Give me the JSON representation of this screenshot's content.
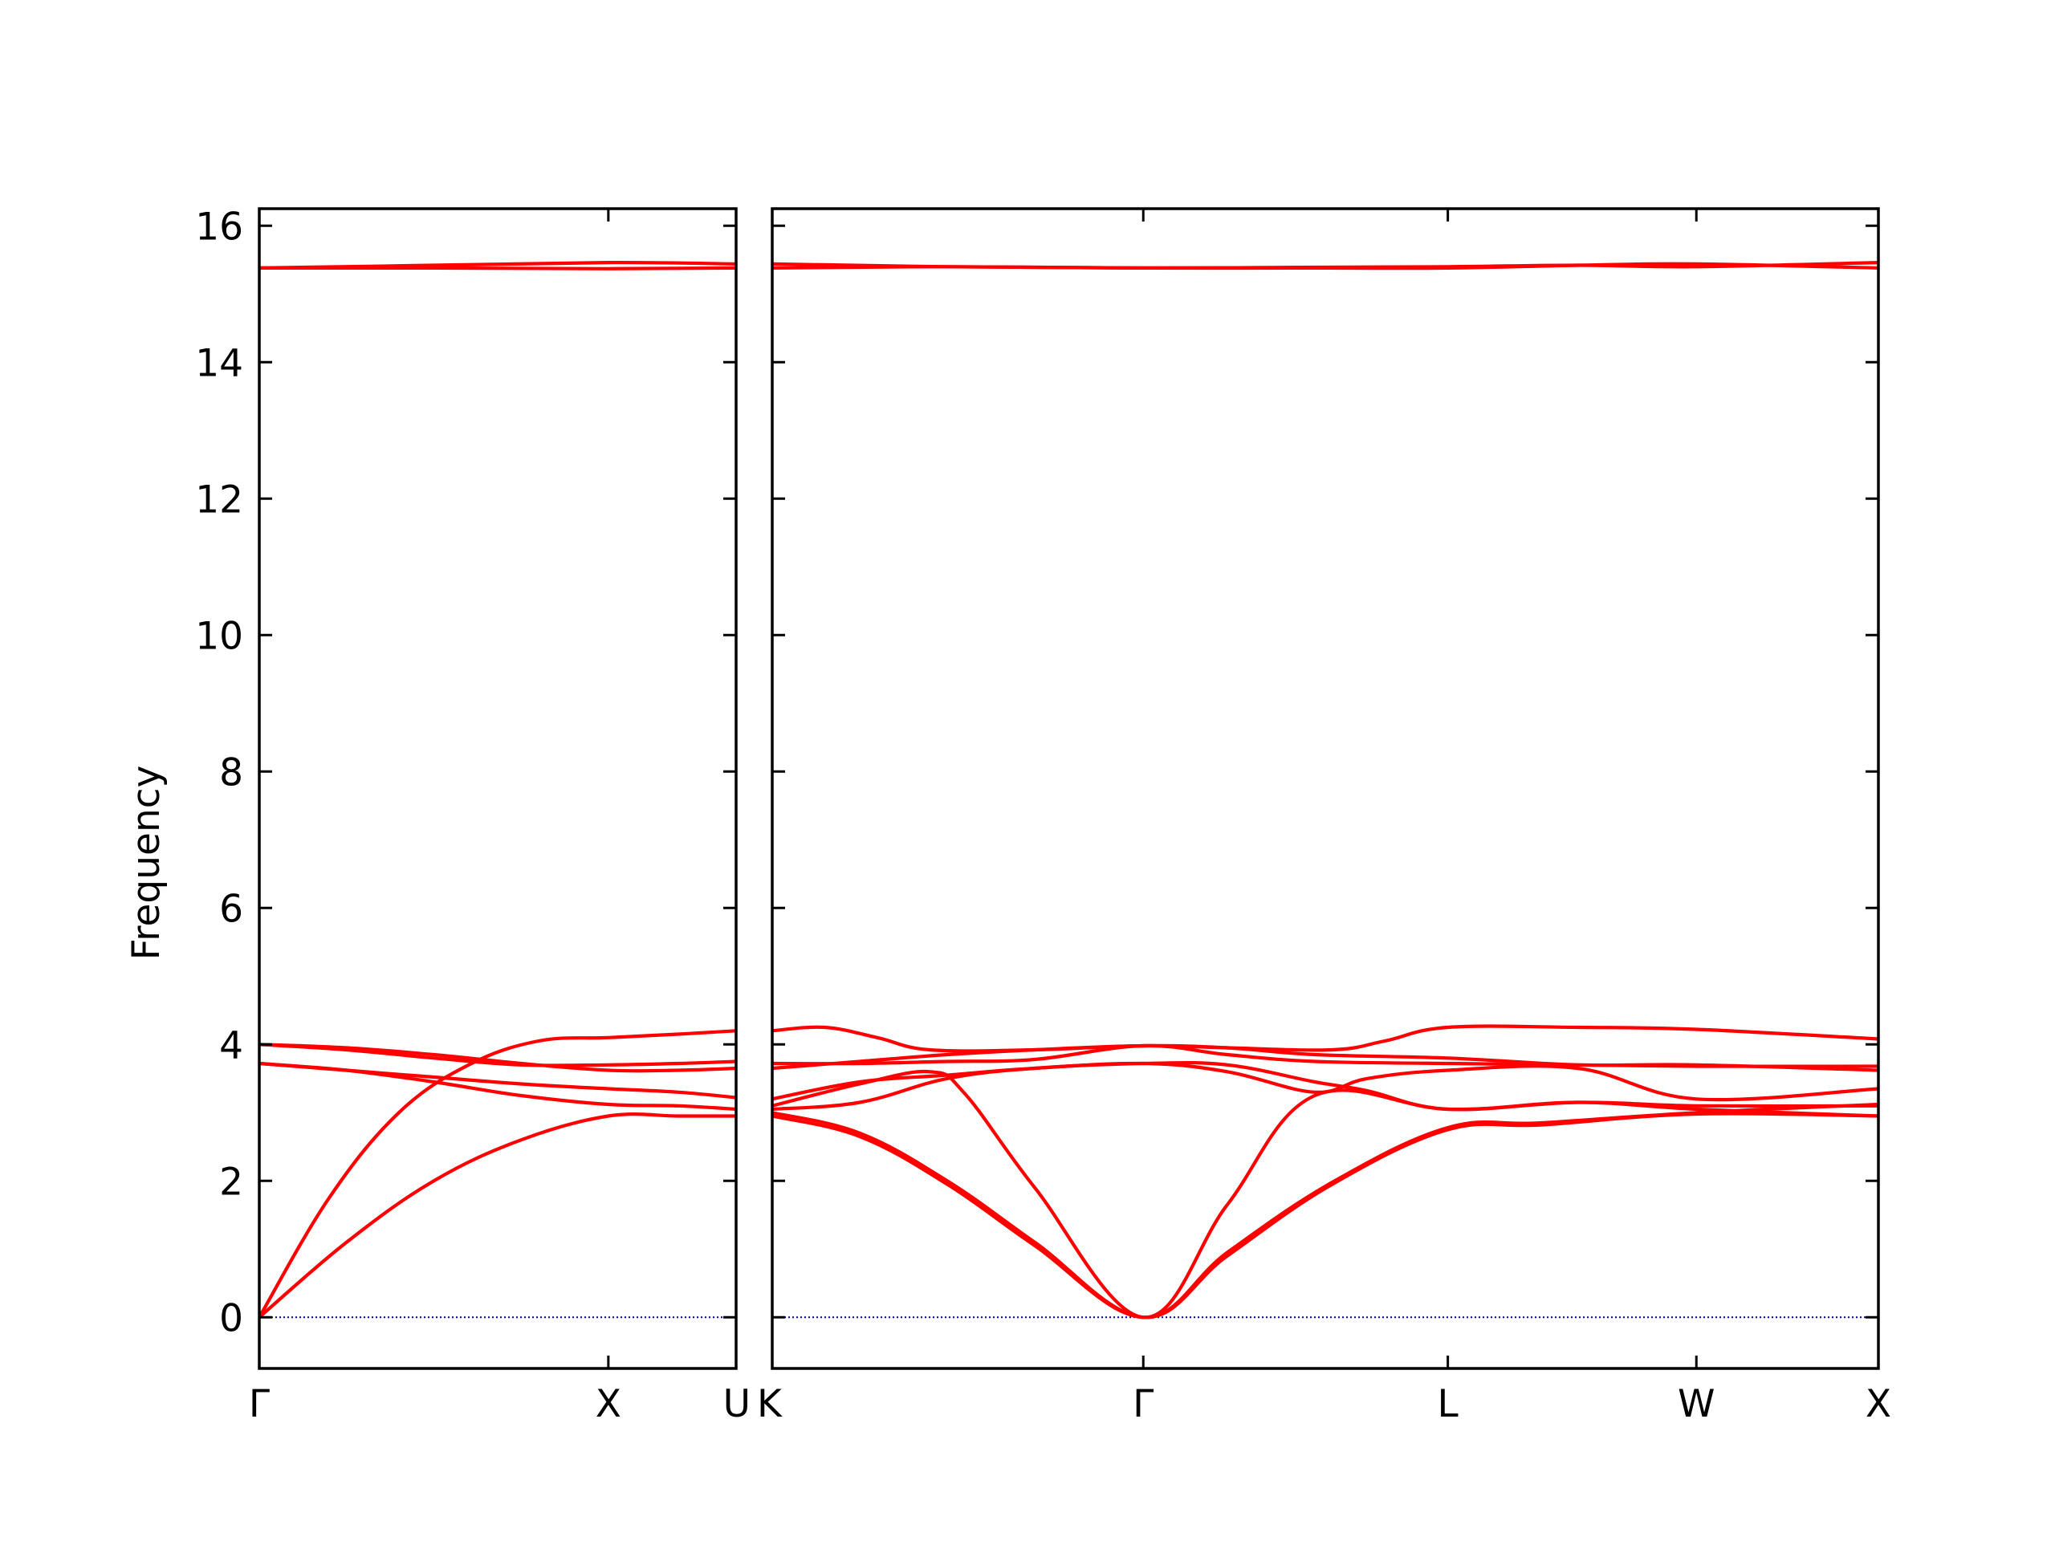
{
  "chart_data": {
    "type": "line",
    "ylabel": "Frequency",
    "ylim": [
      -0.75,
      16.25
    ],
    "yticks": [
      0,
      2,
      4,
      6,
      8,
      10,
      12,
      14,
      16
    ],
    "yticks_text": [
      "0",
      "2",
      "4",
      "6",
      "8",
      "10",
      "12",
      "14",
      "16"
    ],
    "grid": false,
    "colors": {
      "band": "#ff0000",
      "zero_line": "#00008b",
      "axes": "#000000"
    },
    "panels": [
      {
        "x_range": [
          0,
          1.366
        ],
        "ticks": [
          {
            "x": 0,
            "label": "Γ"
          },
          {
            "x": 1.0,
            "label": "X"
          },
          {
            "x": 1.366,
            "label": "U"
          }
        ],
        "bands": [
          [
            [
              0,
              0
            ],
            [
              0.25,
              1.1
            ],
            [
              0.5,
              2.0
            ],
            [
              0.75,
              2.6
            ],
            [
              1.0,
              2.95
            ],
            [
              1.2,
              2.95
            ],
            [
              1.366,
              2.95
            ]
          ],
          [
            [
              0,
              0
            ],
            [
              0.2,
              1.75
            ],
            [
              0.4,
              3.0
            ],
            [
              0.6,
              3.7
            ],
            [
              0.8,
              4.05
            ],
            [
              1.0,
              4.1
            ],
            [
              1.2,
              4.15
            ],
            [
              1.366,
              4.2
            ]
          ],
          [
            [
              0,
              3.72
            ],
            [
              0.25,
              3.62
            ],
            [
              0.5,
              3.45
            ],
            [
              0.75,
              3.25
            ],
            [
              1.0,
              3.12
            ],
            [
              1.2,
              3.1
            ],
            [
              1.366,
              3.05
            ]
          ],
          [
            [
              0,
              3.72
            ],
            [
              0.25,
              3.62
            ],
            [
              0.5,
              3.52
            ],
            [
              0.75,
              3.42
            ],
            [
              1.0,
              3.35
            ],
            [
              1.2,
              3.3
            ],
            [
              1.366,
              3.22
            ]
          ],
          [
            [
              0,
              4.0
            ],
            [
              0.25,
              3.95
            ],
            [
              0.5,
              3.85
            ],
            [
              0.75,
              3.72
            ],
            [
              1.0,
              3.62
            ],
            [
              1.2,
              3.62
            ],
            [
              1.366,
              3.65
            ]
          ],
          [
            [
              0,
              4.0
            ],
            [
              0.25,
              3.92
            ],
            [
              0.5,
              3.8
            ],
            [
              0.75,
              3.7
            ],
            [
              1.0,
              3.7
            ],
            [
              1.2,
              3.72
            ],
            [
              1.366,
              3.75
            ]
          ],
          [
            [
              0,
              15.38
            ],
            [
              0.5,
              15.38
            ],
            [
              1.0,
              15.37
            ],
            [
              1.366,
              15.38
            ]
          ],
          [
            [
              0,
              15.38
            ],
            [
              0.5,
              15.42
            ],
            [
              1.0,
              15.46
            ],
            [
              1.366,
              15.44
            ]
          ]
        ]
      },
      {
        "x_range": [
          0,
          3.16
        ],
        "ticks": [
          {
            "x": 0,
            "label": "K"
          },
          {
            "x": 1.06,
            "label": "Γ"
          },
          {
            "x": 1.93,
            "label": "L"
          },
          {
            "x": 2.64,
            "label": "W"
          },
          {
            "x": 3.16,
            "label": "X"
          }
        ],
        "bands": [
          [
            [
              0,
              3.0
            ],
            [
              0.25,
              2.7
            ],
            [
              0.5,
              2.0
            ],
            [
              0.75,
              1.1
            ],
            [
              1.06,
              0
            ],
            [
              1.3,
              0.9
            ],
            [
              1.6,
              1.95
            ],
            [
              1.93,
              2.75
            ],
            [
              2.2,
              2.82
            ],
            [
              2.64,
              2.98
            ],
            [
              3.16,
              2.95
            ]
          ],
          [
            [
              0,
              2.95
            ],
            [
              0.25,
              2.65
            ],
            [
              0.5,
              1.95
            ],
            [
              0.75,
              1.05
            ],
            [
              1.06,
              0
            ],
            [
              1.3,
              0.95
            ],
            [
              1.6,
              1.98
            ],
            [
              1.93,
              2.78
            ],
            [
              2.2,
              2.85
            ],
            [
              2.64,
              3.0
            ],
            [
              3.16,
              3.12
            ]
          ],
          [
            [
              0,
              3.1
            ],
            [
              0.25,
              3.42
            ],
            [
              0.45,
              3.6
            ],
            [
              0.55,
              3.28
            ],
            [
              0.75,
              1.9
            ],
            [
              1.06,
              0
            ],
            [
              1.3,
              1.65
            ],
            [
              1.55,
              3.25
            ],
            [
              1.93,
              3.05
            ],
            [
              2.3,
              3.15
            ],
            [
              2.64,
              3.05
            ],
            [
              3.16,
              2.95
            ]
          ],
          [
            [
              0,
              3.05
            ],
            [
              0.25,
              3.15
            ],
            [
              0.5,
              3.5
            ],
            [
              0.75,
              3.65
            ],
            [
              1.06,
              3.72
            ],
            [
              1.3,
              3.7
            ],
            [
              1.55,
              3.45
            ],
            [
              1.7,
              3.32
            ],
            [
              1.93,
              3.05
            ],
            [
              2.3,
              3.15
            ],
            [
              2.64,
              3.1
            ],
            [
              3.16,
              3.1
            ]
          ],
          [
            [
              0,
              3.2
            ],
            [
              0.25,
              3.45
            ],
            [
              0.5,
              3.55
            ],
            [
              0.75,
              3.65
            ],
            [
              1.06,
              3.72
            ],
            [
              1.3,
              3.6
            ],
            [
              1.55,
              3.3
            ],
            [
              1.7,
              3.5
            ],
            [
              1.93,
              3.62
            ],
            [
              2.3,
              3.65
            ],
            [
              2.64,
              3.2
            ],
            [
              3.16,
              3.35
            ]
          ],
          [
            [
              0,
              3.65
            ],
            [
              0.25,
              3.75
            ],
            [
              0.5,
              3.85
            ],
            [
              0.75,
              3.92
            ],
            [
              1.06,
              3.98
            ],
            [
              1.3,
              3.95
            ],
            [
              1.55,
              3.85
            ],
            [
              1.93,
              3.8
            ],
            [
              2.3,
              3.7
            ],
            [
              2.64,
              3.7
            ],
            [
              3.16,
              3.62
            ]
          ],
          [
            [
              0,
              3.72
            ],
            [
              0.25,
              3.72
            ],
            [
              0.5,
              3.75
            ],
            [
              0.75,
              3.78
            ],
            [
              1.06,
              3.98
            ],
            [
              1.3,
              3.85
            ],
            [
              1.55,
              3.75
            ],
            [
              1.93,
              3.72
            ],
            [
              2.3,
              3.7
            ],
            [
              2.64,
              3.68
            ],
            [
              3.16,
              3.68
            ]
          ],
          [
            [
              0,
              4.2
            ],
            [
              0.15,
              4.25
            ],
            [
              0.3,
              4.1
            ],
            [
              0.45,
              3.92
            ],
            [
              0.75,
              3.92
            ],
            [
              1.06,
              3.98
            ],
            [
              1.3,
              3.95
            ],
            [
              1.6,
              3.92
            ],
            [
              1.75,
              4.05
            ],
            [
              1.93,
              4.25
            ],
            [
              2.3,
              4.25
            ],
            [
              2.64,
              4.22
            ],
            [
              3.16,
              4.08
            ]
          ],
          [
            [
              0,
              15.38
            ],
            [
              0.5,
              15.4
            ],
            [
              1.06,
              15.38
            ],
            [
              1.5,
              15.38
            ],
            [
              1.93,
              15.38
            ],
            [
              2.3,
              15.42
            ],
            [
              2.64,
              15.44
            ],
            [
              3.16,
              15.38
            ]
          ],
          [
            [
              0,
              15.44
            ],
            [
              0.5,
              15.4
            ],
            [
              1.06,
              15.38
            ],
            [
              1.5,
              15.39
            ],
            [
              1.93,
              15.4
            ],
            [
              2.3,
              15.42
            ],
            [
              2.64,
              15.4
            ],
            [
              3.16,
              15.46
            ]
          ]
        ]
      }
    ]
  }
}
